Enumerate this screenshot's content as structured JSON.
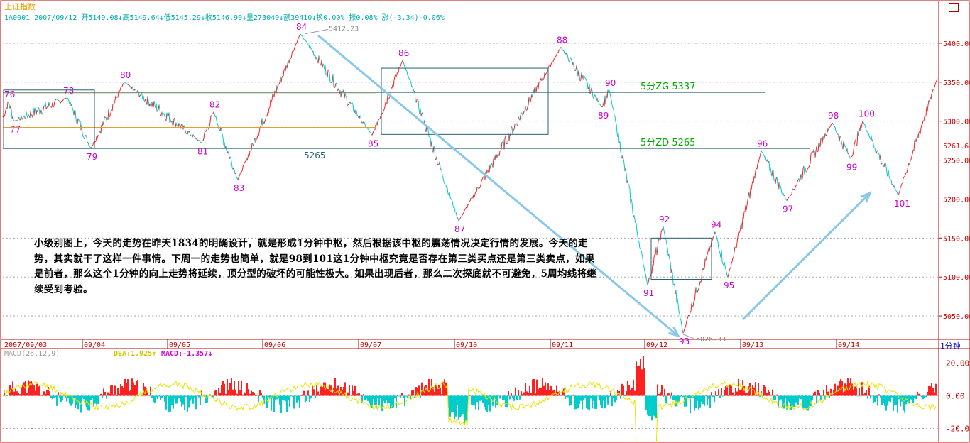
{
  "header": {
    "title": "上证指数",
    "quote": "1A0001 2007/09/12 开5149.08↓高5149.64↓低5145.29↓收5146.90↓量273040↓额39410↓换0.00% 振0.08% 涨(-3.34)-0.06%"
  },
  "macd_header": {
    "name": "MACD(26,12,9)",
    "dea": "DEA:1.925↑",
    "macd": "MACD:-1.357↓"
  },
  "timeframe_label": "1分钟",
  "note": "小级别图上，今天的走势在昨天1834的明确设计，就是形成1分钟中枢，然后根据该中枢的震荡情况决定行情的发展。今天的走势，其实就干了这样一件事情。下周一的走势也简单，就是98到101这1分钟中枢究竟是否存在第三类买点还是第三类卖点，如果是前者，那么这个1分钟的向上走势将延续，顶分型的破坏的可能性极大。如果出现后者，那么二次探底就不可避免，5周均线将继续受到考验。",
  "chart_data": {
    "type": "line",
    "title": "上证指数",
    "timeframe": "1分钟",
    "ylim": [
      5020,
      5430
    ],
    "y_ticks": [
      5050.0,
      5100.0,
      5150.0,
      5200.0,
      5250.0,
      5300.0,
      5350.0,
      5400.0
    ],
    "current_price_label": "5261.6",
    "date_labels": [
      "2007/09/03",
      "09/04",
      "09/05",
      "09/06",
      "09/07",
      "09/10",
      "09/11",
      "09/12",
      "09/13",
      "09/14"
    ],
    "pivot_points": [
      {
        "label": "76",
        "price": 5325
      },
      {
        "label": "77",
        "price": 5300
      },
      {
        "label": "78",
        "price": 5330
      },
      {
        "label": "79",
        "price": 5265
      },
      {
        "label": "80",
        "price": 5350
      },
      {
        "label": "81",
        "price": 5272
      },
      {
        "label": "82",
        "price": 5312
      },
      {
        "label": "83",
        "price": 5225
      },
      {
        "label": "84",
        "price": 5412
      },
      {
        "label": "85",
        "price": 5282
      },
      {
        "label": "86",
        "price": 5378
      },
      {
        "label": "87",
        "price": 5172
      },
      {
        "label": "88",
        "price": 5395
      },
      {
        "label": "89",
        "price": 5318
      },
      {
        "label": "90",
        "price": 5340
      },
      {
        "label": "91",
        "price": 5090
      },
      {
        "label": "92",
        "price": 5165
      },
      {
        "label": "93",
        "price": 5028
      },
      {
        "label": "94",
        "price": 5158
      },
      {
        "label": "95",
        "price": 5100
      },
      {
        "label": "96",
        "price": 5262
      },
      {
        "label": "97",
        "price": 5198
      },
      {
        "label": "98",
        "price": 5298
      },
      {
        "label": "99",
        "price": 5252
      },
      {
        "label": "100",
        "price": 5300
      },
      {
        "label": "101",
        "price": 5205
      }
    ],
    "price_annotations": [
      {
        "text": "5412.23",
        "price": 5412.23
      },
      {
        "text": "5026.33",
        "price": 5026.33
      }
    ],
    "levels": [
      {
        "text": "5分ZG 5337",
        "price": 5337,
        "color": "#00aa00"
      },
      {
        "text": "5分ZD 5265",
        "price": 5265,
        "color": "#00aa00"
      },
      {
        "text": "5265",
        "price": 5265,
        "color": "#2a6070"
      }
    ],
    "macd_ylim": [
      -28,
      28
    ],
    "macd_ticks": [
      "20.00",
      "0.00",
      "-20.00"
    ],
    "colors": {
      "up": "#ff2020",
      "down": "#00cccc",
      "dea": "#e6e600",
      "pivot": "#cc00cc",
      "grid": "#999999",
      "axis": "#c00000",
      "arrow": "#88c8e8",
      "box": "#2a6070",
      "level": "#e0a030"
    }
  }
}
